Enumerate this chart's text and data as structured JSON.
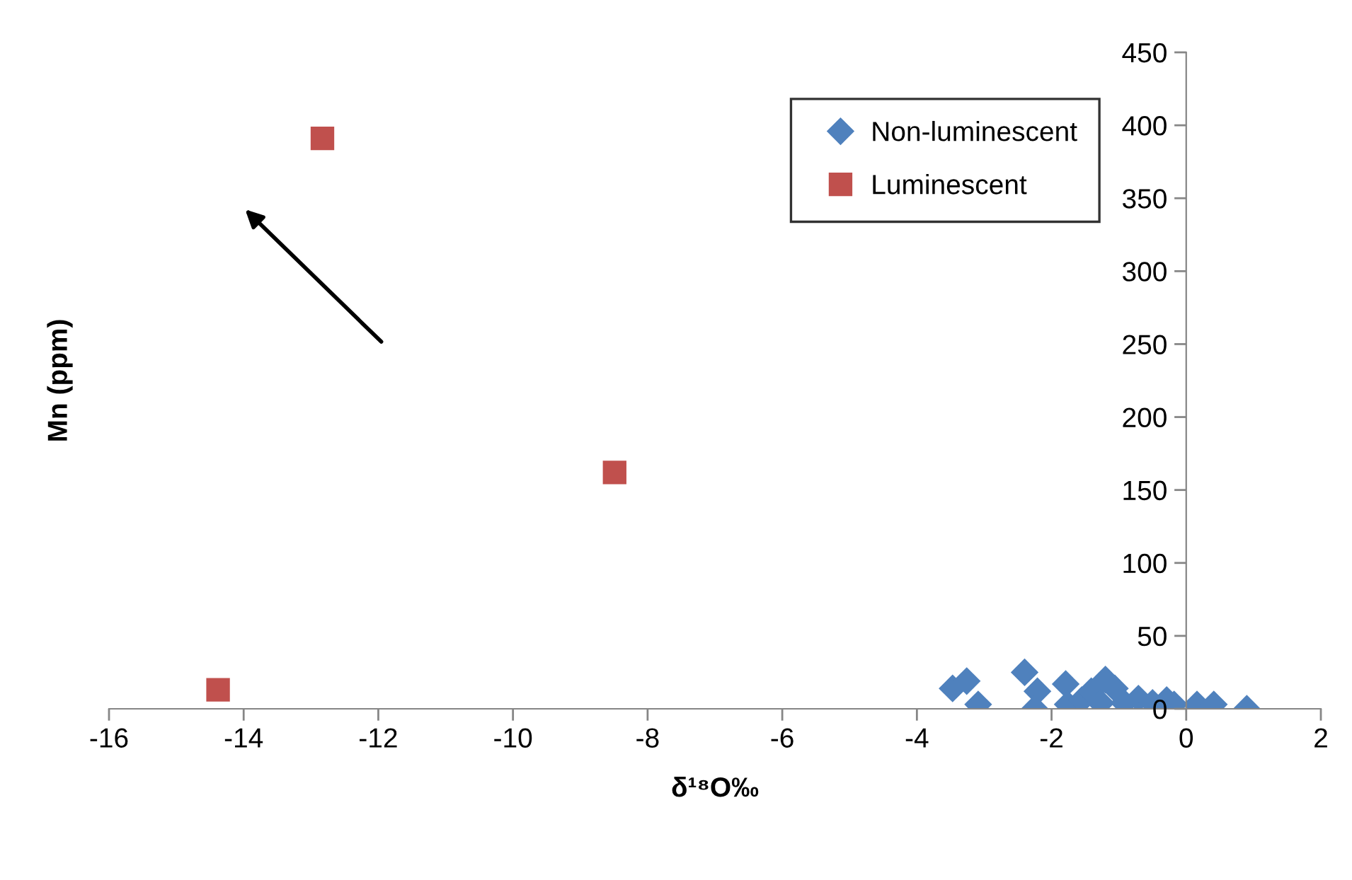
{
  "chart_data": {
    "type": "scatter",
    "xlabel": "δ¹⁸O‰",
    "ylabel": "Mn (ppm)",
    "xlim": [
      -16,
      2
    ],
    "xticks": [
      -16,
      -14,
      -12,
      -10,
      -8,
      -6,
      -4,
      -2,
      0,
      2
    ],
    "ylim": [
      0,
      450
    ],
    "yticks": [
      0,
      50,
      100,
      150,
      200,
      250,
      300,
      350,
      400,
      450
    ],
    "grid": false,
    "legend": "top",
    "series": [
      {
        "name": "Non-luminescent",
        "color": "#4f81bd",
        "marker": "diamond",
        "x": [
          -3.47,
          -3.26,
          -3.09,
          -2.4,
          -2.21,
          -2.25,
          -1.79,
          -1.76,
          -1.55,
          -1.41,
          -1.2,
          -1.27,
          -1.06,
          -0.92,
          -0.71,
          -0.5,
          -0.29,
          -0.18,
          0.16,
          0.41,
          0.9
        ],
        "values": [
          14,
          19,
          3,
          25,
          12,
          0,
          17,
          3,
          6,
          12,
          20,
          4,
          14,
          4,
          7,
          4,
          6,
          3,
          3,
          3,
          0
        ]
      },
      {
        "name": "Luminescent",
        "color": "#c0504d",
        "marker": "square",
        "x": [
          -12.83,
          -8.49,
          -14.38
        ],
        "values": [
          391,
          162,
          13
        ]
      }
    ]
  }
}
